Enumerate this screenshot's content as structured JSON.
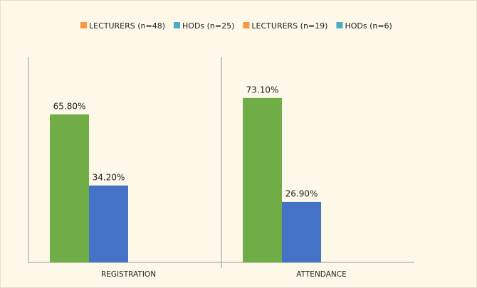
{
  "chart_data": {
    "type": "bar",
    "categories": [
      "REGISTRATION",
      "ATTENDANCE"
    ],
    "series": [
      {
        "name": "LECTURERS (n=48)",
        "color": "#f79646",
        "bar_color": "#70ad47",
        "values": [
          65.8,
          73.1
        ],
        "value_labels": [
          "65.80%",
          "73.10%"
        ]
      },
      {
        "name": "HODs (n=25)",
        "color": "#4bacc6",
        "bar_color": "#4472c4",
        "values": [
          34.2,
          26.9
        ],
        "value_labels": [
          "34.20%",
          "26.90%"
        ]
      },
      {
        "name": "LECTURERS (n=19)",
        "color": "#f79646",
        "bar_color": "#70ad47",
        "values": [
          null,
          null
        ]
      },
      {
        "name": "HODs (n=6)",
        "color": "#4bacc6",
        "bar_color": "#4472c4",
        "values": [
          null,
          null
        ]
      }
    ]
  }
}
